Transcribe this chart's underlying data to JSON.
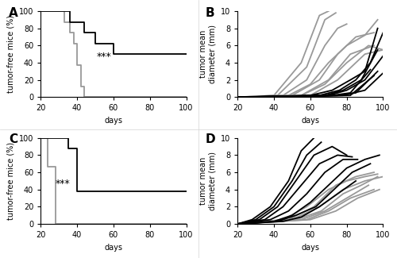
{
  "panel_A": {
    "label": "A",
    "gray_steps": [
      [
        20,
        100
      ],
      [
        33,
        100
      ],
      [
        33,
        87.5
      ],
      [
        36,
        87.5
      ],
      [
        36,
        75
      ],
      [
        38,
        75
      ],
      [
        38,
        62.5
      ],
      [
        40,
        62.5
      ],
      [
        40,
        37.5
      ],
      [
        42,
        37.5
      ],
      [
        42,
        12.5
      ],
      [
        44,
        12.5
      ],
      [
        44,
        0
      ],
      [
        100,
        0
      ]
    ],
    "black_steps": [
      [
        20,
        100
      ],
      [
        36,
        100
      ],
      [
        36,
        87.5
      ],
      [
        44,
        87.5
      ],
      [
        44,
        75
      ],
      [
        50,
        75
      ],
      [
        50,
        62.5
      ],
      [
        60,
        62.5
      ],
      [
        60,
        50
      ],
      [
        100,
        50
      ]
    ],
    "xlabel": "days",
    "ylabel": "tumor-free mice (%)",
    "xlim": [
      20,
      100
    ],
    "ylim": [
      0,
      100
    ],
    "xticks": [
      20,
      40,
      60,
      80,
      100
    ],
    "yticks": [
      0,
      20,
      40,
      60,
      80,
      100
    ],
    "annotation": "***",
    "ann_x": 55,
    "ann_y": 47
  },
  "panel_B": {
    "label": "B",
    "gray_lines": [
      [
        [
          20,
          40,
          55,
          65,
          70
        ],
        [
          0,
          0.2,
          4,
          9.5,
          10
        ]
      ],
      [
        [
          20,
          42,
          58,
          68,
          74
        ],
        [
          0,
          0.2,
          3.5,
          9,
          9.8
        ]
      ],
      [
        [
          20,
          45,
          58,
          68,
          75,
          80
        ],
        [
          0,
          0.2,
          2,
          6,
          8,
          8.5
        ]
      ],
      [
        [
          20,
          48,
          60,
          70,
          80,
          90,
          97
        ],
        [
          0,
          0.2,
          1.5,
          4,
          6,
          7.2,
          9
        ]
      ],
      [
        [
          20,
          50,
          65,
          75,
          85,
          95
        ],
        [
          0,
          0.2,
          2,
          5,
          7,
          7.5
        ]
      ],
      [
        [
          20,
          55,
          68,
          80,
          92,
          100
        ],
        [
          0,
          0.2,
          1.5,
          4,
          6,
          5.5
        ]
      ],
      [
        [
          20,
          55,
          70,
          82,
          95
        ],
        [
          0,
          0.2,
          2,
          5,
          6
        ]
      ],
      [
        [
          20,
          60,
          75,
          90,
          100
        ],
        [
          0,
          0.2,
          2,
          5,
          5.5
        ]
      ]
    ],
    "black_lines": [
      [
        [
          20,
          60,
          72,
          82,
          90,
          97
        ],
        [
          0,
          0.2,
          0.8,
          2,
          3,
          8
        ]
      ],
      [
        [
          20,
          65,
          76,
          85,
          93,
          100
        ],
        [
          0,
          0.2,
          0.8,
          2,
          4,
          7.5
        ]
      ],
      [
        [
          20,
          68,
          78,
          88,
          97
        ],
        [
          0,
          0.2,
          0.8,
          2,
          5.5
        ]
      ],
      [
        [
          20,
          70,
          80,
          90,
          100
        ],
        [
          0,
          0.2,
          0.8,
          2,
          4.8
        ]
      ],
      [
        [
          20,
          72,
          82,
          93
        ],
        [
          0,
          0.2,
          0.5,
          3.2
        ]
      ],
      [
        [
          20,
          75,
          85,
          97
        ],
        [
          0,
          0.2,
          0.5,
          3.0
        ]
      ],
      [
        [
          20,
          78,
          90,
          100
        ],
        [
          0,
          0.2,
          0.8,
          2.8
        ]
      ],
      [
        [
          20,
          82,
          95
        ],
        [
          0,
          0.2,
          2.5
        ]
      ]
    ],
    "xlabel": "days",
    "ylabel": "tumor mean\ndiameter (mm)",
    "xlim": [
      20,
      100
    ],
    "ylim": [
      0,
      10
    ],
    "xticks": [
      20,
      40,
      60,
      80,
      100
    ],
    "yticks": [
      0,
      2,
      4,
      6,
      8,
      10
    ]
  },
  "panel_C": {
    "label": "C",
    "gray_steps": [
      [
        20,
        100
      ],
      [
        24,
        100
      ],
      [
        24,
        66.7
      ],
      [
        28,
        66.7
      ],
      [
        28,
        0
      ],
      [
        100,
        0
      ]
    ],
    "black_steps": [
      [
        20,
        100
      ],
      [
        35,
        100
      ],
      [
        35,
        87.5
      ],
      [
        40,
        87.5
      ],
      [
        40,
        37.5
      ],
      [
        100,
        37.5
      ]
    ],
    "xlabel": "days",
    "ylabel": "tumor-free mice (%)",
    "xlim": [
      20,
      100
    ],
    "ylim": [
      0,
      100
    ],
    "xticks": [
      20,
      40,
      60,
      80,
      100
    ],
    "yticks": [
      0,
      20,
      40,
      60,
      80,
      100
    ],
    "annotation": "***",
    "ann_x": 32,
    "ann_y": 47
  },
  "panel_D": {
    "label": "D",
    "gray_lines": [
      [
        [
          20,
          45,
          58,
          70,
          80,
          90,
          97
        ],
        [
          0,
          0.5,
          2,
          4,
          5,
          5.5,
          5.8
        ]
      ],
      [
        [
          20,
          48,
          62,
          74,
          85,
          95
        ],
        [
          0,
          0.5,
          2,
          4.5,
          5.5,
          6
        ]
      ],
      [
        [
          20,
          50,
          65,
          78,
          90,
          100
        ],
        [
          0,
          0.5,
          2,
          4,
          5,
          5.5
        ]
      ],
      [
        [
          20,
          52,
          66,
          78,
          88,
          97
        ],
        [
          0,
          0.5,
          1.5,
          3.5,
          4.5,
          5.5
        ]
      ],
      [
        [
          20,
          55,
          68,
          80,
          92
        ],
        [
          0,
          0.5,
          1.5,
          3,
          4.5
        ]
      ],
      [
        [
          20,
          58,
          70,
          82,
          95
        ],
        [
          0,
          0.5,
          1.5,
          3,
          4
        ]
      ],
      [
        [
          20,
          60,
          74,
          86,
          98
        ],
        [
          0,
          0.5,
          1.5,
          3,
          4
        ]
      ]
    ],
    "black_lines": [
      [
        [
          20,
          28,
          38,
          48,
          55,
          62
        ],
        [
          0,
          0.5,
          2,
          5,
          8.5,
          10
        ]
      ],
      [
        [
          20,
          30,
          40,
          50,
          58,
          66
        ],
        [
          0,
          0.5,
          2,
          5,
          8,
          9.5
        ]
      ],
      [
        [
          20,
          32,
          42,
          52,
          62,
          72,
          80
        ],
        [
          0,
          0.5,
          2,
          5,
          8,
          9,
          8
        ]
      ],
      [
        [
          20,
          35,
          45,
          55,
          65,
          75,
          83
        ],
        [
          0,
          0.5,
          2,
          4.5,
          7,
          8,
          7.8
        ]
      ],
      [
        [
          20,
          38,
          48,
          58,
          68,
          78,
          86
        ],
        [
          0,
          0.5,
          1.5,
          3.5,
          6,
          7.5,
          7.5
        ]
      ],
      [
        [
          20,
          40,
          50,
          60,
          70,
          80,
          90,
          98
        ],
        [
          0,
          0.3,
          1,
          2.5,
          4.5,
          6.5,
          7.5,
          8
        ]
      ],
      [
        [
          20,
          42,
          52,
          63,
          73,
          83,
          93
        ],
        [
          0,
          0.3,
          1,
          2,
          4,
          6,
          7
        ]
      ],
      [
        [
          20,
          45,
          55,
          65,
          75,
          85
        ],
        [
          0,
          0.3,
          0.8,
          2,
          3.5,
          5
        ]
      ]
    ],
    "xlabel": "days",
    "ylabel": "tumor mean\ndiameter (mm)",
    "xlim": [
      20,
      100
    ],
    "ylim": [
      0,
      10
    ],
    "xticks": [
      20,
      40,
      60,
      80,
      100
    ],
    "yticks": [
      0,
      2,
      4,
      6,
      8,
      10
    ]
  },
  "gray_color": "#999999",
  "black_color": "#000000",
  "line_width": 1.3,
  "fontsize_label": 7,
  "fontsize_panel": 11,
  "fontsize_tick": 7,
  "fontsize_ann": 9
}
